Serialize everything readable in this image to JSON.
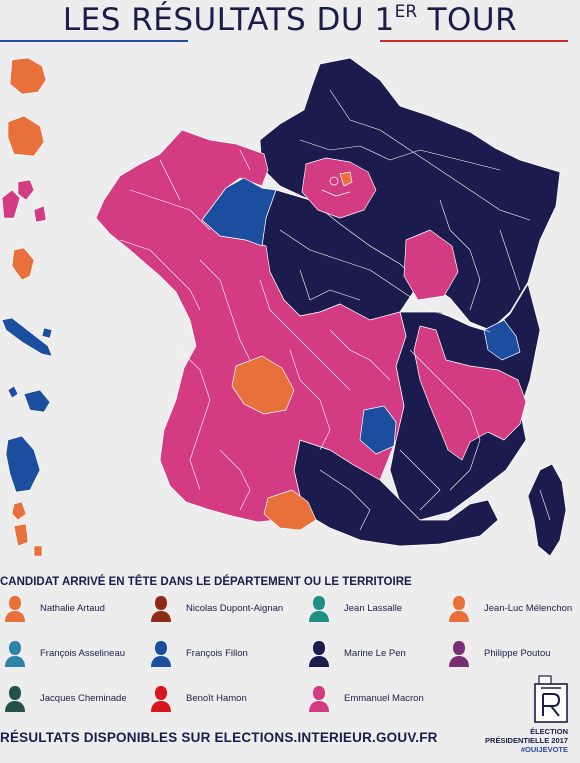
{
  "title": {
    "main": "LES RÉSULTATS DU 1",
    "sup": "ER",
    "end": " TOUR"
  },
  "colors": {
    "artaud": "#e8703a",
    "dupont_aignan": "#8e2a18",
    "lassalle": "#1f8f83",
    "melenchon": "#e8703a",
    "asselineau": "#2d84a6",
    "fillon": "#1c4ea0",
    "le_pen": "#1c1b4d",
    "poutou": "#7a2e74",
    "cheminade": "#244f4a",
    "hamon": "#d8141f",
    "macron": "#d33c82",
    "background": "#ededed"
  },
  "legend": {
    "title": "CANDIDAT ARRIVÉ EN TÊTE DANS LE DÉPARTEMENT OU LE TERRITOIRE",
    "items": [
      {
        "name": "Nathalie Artaud",
        "color": "#e8703a"
      },
      {
        "name": "Nicolas Dupont-Aignan",
        "color": "#8e2a18"
      },
      {
        "name": "Jean Lassalle",
        "color": "#1f8f83"
      },
      {
        "name": "Jean-Luc Mélenchon",
        "color": "#e8703a"
      },
      {
        "name": "François Asselineau",
        "color": "#2d84a6"
      },
      {
        "name": "François Fillon",
        "color": "#1c4ea0"
      },
      {
        "name": "Marine Le Pen",
        "color": "#1c1b4d"
      },
      {
        "name": "Philippe Poutou",
        "color": "#7a2e74"
      },
      {
        "name": "Jacques Cheminade",
        "color": "#244f4a"
      },
      {
        "name": "Benoît Hamon",
        "color": "#d8141f"
      },
      {
        "name": "Emmanuel Macron",
        "color": "#d33c82"
      }
    ]
  },
  "footer": {
    "text": "RÉSULTATS DISPONIBLES SUR ELECTIONS.INTERIEUR.GOUV.FR",
    "brand_line1": "ÉLECTION",
    "brand_line2": "PRÉSIDENTIELLE 2017",
    "hashtag": "#OUIJEVOTE"
  }
}
